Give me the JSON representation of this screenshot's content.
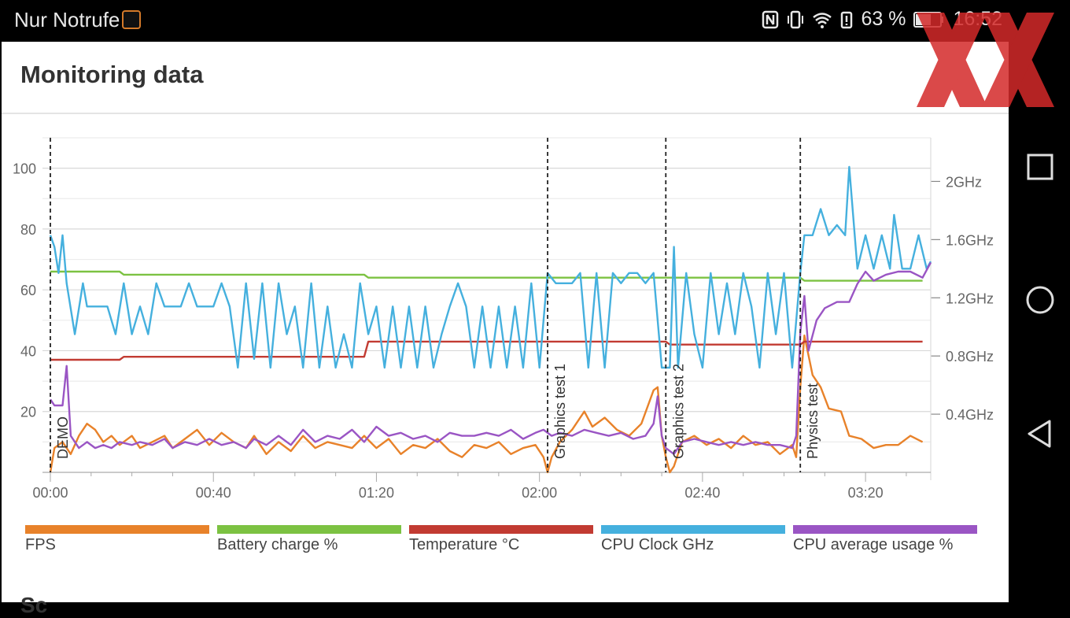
{
  "status_bar": {
    "title": "Nur Notrufe",
    "battery": "63 %",
    "time": "16:52",
    "icons": [
      "app-icon",
      "nfc-icon",
      "vibrate-icon",
      "wifi-icon",
      "battery-alert-icon",
      "battery-icon"
    ]
  },
  "page": {
    "title": "Monitoring data",
    "next_heading": "Sc"
  },
  "navigation": [
    "recent-apps-icon",
    "home-icon",
    "back-icon"
  ],
  "watermark": "XX",
  "colors": {
    "fps": "#e8822a",
    "battery": "#7cc242",
    "temperature": "#c23b32",
    "cpu_clock": "#45b0de",
    "cpu_usage": "#9a55c4"
  },
  "chart_data": {
    "type": "line",
    "x_unit": "mm:ss",
    "xlim": [
      "00:00",
      "03:36"
    ],
    "x_ticks": [
      "00:00",
      "00:40",
      "01:20",
      "02:00",
      "02:40",
      "03:20"
    ],
    "ylim_left": [
      0,
      110
    ],
    "y_ticks_left": [
      "20",
      "40",
      "60",
      "80",
      "100"
    ],
    "ylim_right_ghz": [
      0,
      2.3
    ],
    "y_ticks_right": [
      "0.4GHz",
      "0.8GHz",
      "1.2GHz",
      "1.6GHz",
      "2GHz"
    ],
    "grid": true,
    "legend_position": "bottom",
    "markers": [
      {
        "label": "DEMO",
        "t": 0
      },
      {
        "label": "Graphics test 1",
        "t": 122
      },
      {
        "label": "Graphics test 2",
        "t": 151
      },
      {
        "label": "Physics test",
        "t": 184
      }
    ],
    "series": [
      {
        "name": "FPS",
        "color": "#e8822a",
        "axis": "left",
        "points": [
          [
            0,
            0
          ],
          [
            1,
            8
          ],
          [
            3,
            10
          ],
          [
            5,
            6
          ],
          [
            7,
            12
          ],
          [
            9,
            16
          ],
          [
            11,
            14
          ],
          [
            13,
            10
          ],
          [
            15,
            12
          ],
          [
            17,
            9
          ],
          [
            20,
            12
          ],
          [
            22,
            8
          ],
          [
            25,
            10
          ],
          [
            28,
            12
          ],
          [
            30,
            8
          ],
          [
            33,
            11
          ],
          [
            36,
            14
          ],
          [
            39,
            9
          ],
          [
            42,
            13
          ],
          [
            45,
            10
          ],
          [
            48,
            8
          ],
          [
            50,
            12
          ],
          [
            53,
            6
          ],
          [
            56,
            10
          ],
          [
            59,
            7
          ],
          [
            62,
            12
          ],
          [
            65,
            8
          ],
          [
            68,
            10
          ],
          [
            71,
            9
          ],
          [
            74,
            8
          ],
          [
            77,
            12
          ],
          [
            80,
            8
          ],
          [
            83,
            11
          ],
          [
            86,
            6
          ],
          [
            89,
            9
          ],
          [
            92,
            8
          ],
          [
            95,
            11
          ],
          [
            98,
            7
          ],
          [
            101,
            5
          ],
          [
            104,
            9
          ],
          [
            107,
            8
          ],
          [
            110,
            10
          ],
          [
            113,
            6
          ],
          [
            116,
            8
          ],
          [
            119,
            9
          ],
          [
            121,
            5
          ],
          [
            122,
            0
          ],
          [
            123,
            5
          ],
          [
            125,
            10
          ],
          [
            128,
            14
          ],
          [
            131,
            20
          ],
          [
            133,
            15
          ],
          [
            136,
            18
          ],
          [
            139,
            14
          ],
          [
            142,
            12
          ],
          [
            145,
            16
          ],
          [
            148,
            27
          ],
          [
            149,
            28
          ],
          [
            150,
            12
          ],
          [
            151,
            5
          ],
          [
            152,
            0
          ],
          [
            153,
            2
          ],
          [
            155,
            10
          ],
          [
            158,
            12
          ],
          [
            161,
            9
          ],
          [
            164,
            11
          ],
          [
            167,
            8
          ],
          [
            170,
            12
          ],
          [
            173,
            9
          ],
          [
            176,
            10
          ],
          [
            179,
            6
          ],
          [
            182,
            9
          ],
          [
            183,
            5
          ],
          [
            184,
            28
          ],
          [
            185,
            45
          ],
          [
            187,
            32
          ],
          [
            189,
            28
          ],
          [
            191,
            21
          ],
          [
            194,
            20
          ],
          [
            196,
            12
          ],
          [
            199,
            11
          ],
          [
            202,
            8
          ],
          [
            205,
            9
          ],
          [
            208,
            9
          ],
          [
            211,
            12
          ],
          [
            214,
            10
          ]
        ]
      },
      {
        "name": "Battery charge %",
        "color": "#7cc242",
        "axis": "left",
        "points": [
          [
            0,
            66
          ],
          [
            17,
            66
          ],
          [
            18,
            65
          ],
          [
            77,
            65
          ],
          [
            78,
            64
          ],
          [
            184,
            64
          ],
          [
            185,
            63
          ],
          [
            214,
            63
          ]
        ]
      },
      {
        "name": "Temperature °C",
        "color": "#c23b32",
        "axis": "left",
        "points": [
          [
            0,
            37
          ],
          [
            17,
            37
          ],
          [
            18,
            38
          ],
          [
            77,
            38
          ],
          [
            78,
            43
          ],
          [
            151,
            43
          ],
          [
            152,
            42
          ],
          [
            184,
            42
          ],
          [
            185,
            43
          ],
          [
            214,
            43
          ]
        ]
      },
      {
        "name": "CPU Clock GHz",
        "color": "#45b0de",
        "axis": "right",
        "points": [
          [
            0,
            1.63
          ],
          [
            1,
            1.55
          ],
          [
            2,
            1.37
          ],
          [
            3,
            1.63
          ],
          [
            4,
            1.3
          ],
          [
            6,
            0.95
          ],
          [
            8,
            1.3
          ],
          [
            9,
            1.14
          ],
          [
            11,
            1.14
          ],
          [
            14,
            1.14
          ],
          [
            16,
            0.95
          ],
          [
            18,
            1.3
          ],
          [
            20,
            0.95
          ],
          [
            22,
            1.14
          ],
          [
            24,
            0.95
          ],
          [
            26,
            1.3
          ],
          [
            28,
            1.14
          ],
          [
            30,
            1.14
          ],
          [
            32,
            1.14
          ],
          [
            34,
            1.3
          ],
          [
            36,
            1.14
          ],
          [
            38,
            1.14
          ],
          [
            40,
            1.14
          ],
          [
            42,
            1.3
          ],
          [
            44,
            1.14
          ],
          [
            46,
            0.72
          ],
          [
            48,
            1.3
          ],
          [
            50,
            0.78
          ],
          [
            52,
            1.3
          ],
          [
            54,
            0.72
          ],
          [
            56,
            1.3
          ],
          [
            58,
            0.95
          ],
          [
            60,
            1.14
          ],
          [
            62,
            0.72
          ],
          [
            64,
            1.3
          ],
          [
            66,
            0.72
          ],
          [
            68,
            1.14
          ],
          [
            70,
            0.72
          ],
          [
            72,
            0.95
          ],
          [
            74,
            0.72
          ],
          [
            76,
            1.3
          ],
          [
            78,
            0.95
          ],
          [
            80,
            1.14
          ],
          [
            82,
            0.72
          ],
          [
            84,
            1.14
          ],
          [
            86,
            0.72
          ],
          [
            88,
            1.14
          ],
          [
            90,
            0.72
          ],
          [
            92,
            1.14
          ],
          [
            94,
            0.72
          ],
          [
            96,
            0.95
          ],
          [
            98,
            1.14
          ],
          [
            100,
            1.3
          ],
          [
            102,
            1.14
          ],
          [
            104,
            0.72
          ],
          [
            106,
            1.14
          ],
          [
            108,
            0.72
          ],
          [
            110,
            1.14
          ],
          [
            112,
            0.72
          ],
          [
            114,
            1.14
          ],
          [
            116,
            0.72
          ],
          [
            118,
            1.3
          ],
          [
            120,
            0.72
          ],
          [
            122,
            1.37
          ],
          [
            124,
            1.3
          ],
          [
            126,
            1.3
          ],
          [
            128,
            1.3
          ],
          [
            130,
            1.37
          ],
          [
            132,
            0.72
          ],
          [
            134,
            1.37
          ],
          [
            136,
            0.72
          ],
          [
            138,
            1.37
          ],
          [
            140,
            1.3
          ],
          [
            142,
            1.37
          ],
          [
            144,
            1.37
          ],
          [
            146,
            1.3
          ],
          [
            148,
            1.37
          ],
          [
            150,
            0.72
          ],
          [
            152,
            0.72
          ],
          [
            153,
            1.55
          ],
          [
            154,
            0.72
          ],
          [
            156,
            1.37
          ],
          [
            158,
            0.95
          ],
          [
            160,
            0.72
          ],
          [
            162,
            1.37
          ],
          [
            164,
            0.95
          ],
          [
            166,
            1.3
          ],
          [
            168,
            0.95
          ],
          [
            170,
            1.37
          ],
          [
            172,
            1.14
          ],
          [
            174,
            0.72
          ],
          [
            176,
            1.37
          ],
          [
            178,
            0.95
          ],
          [
            180,
            1.37
          ],
          [
            182,
            0.72
          ],
          [
            184,
            1.37
          ],
          [
            185,
            1.63
          ],
          [
            187,
            1.63
          ],
          [
            189,
            1.81
          ],
          [
            191,
            1.63
          ],
          [
            193,
            1.7
          ],
          [
            195,
            1.63
          ],
          [
            196,
            2.1
          ],
          [
            198,
            1.4
          ],
          [
            200,
            1.63
          ],
          [
            202,
            1.4
          ],
          [
            204,
            1.63
          ],
          [
            206,
            1.4
          ],
          [
            207,
            1.77
          ],
          [
            209,
            1.4
          ],
          [
            211,
            1.4
          ],
          [
            213,
            1.63
          ],
          [
            215,
            1.4
          ],
          [
            216,
            1.45
          ]
        ]
      },
      {
        "name": "CPU average usage %",
        "color": "#9a55c4",
        "axis": "left",
        "points": [
          [
            0,
            24
          ],
          [
            1,
            22
          ],
          [
            3,
            22
          ],
          [
            4,
            35
          ],
          [
            5,
            12
          ],
          [
            7,
            8
          ],
          [
            9,
            10
          ],
          [
            11,
            8
          ],
          [
            13,
            9
          ],
          [
            15,
            8
          ],
          [
            17,
            10
          ],
          [
            20,
            9
          ],
          [
            22,
            10
          ],
          [
            25,
            9
          ],
          [
            28,
            11
          ],
          [
            30,
            8
          ],
          [
            33,
            10
          ],
          [
            36,
            9
          ],
          [
            39,
            11
          ],
          [
            42,
            9
          ],
          [
            45,
            10
          ],
          [
            48,
            8
          ],
          [
            50,
            11
          ],
          [
            53,
            9
          ],
          [
            56,
            12
          ],
          [
            59,
            9
          ],
          [
            62,
            14
          ],
          [
            65,
            10
          ],
          [
            68,
            12
          ],
          [
            71,
            11
          ],
          [
            74,
            14
          ],
          [
            77,
            10
          ],
          [
            80,
            15
          ],
          [
            83,
            12
          ],
          [
            86,
            13
          ],
          [
            89,
            11
          ],
          [
            92,
            12
          ],
          [
            95,
            10
          ],
          [
            98,
            13
          ],
          [
            101,
            12
          ],
          [
            104,
            12
          ],
          [
            107,
            13
          ],
          [
            110,
            12
          ],
          [
            113,
            14
          ],
          [
            116,
            11
          ],
          [
            119,
            13
          ],
          [
            121,
            14
          ],
          [
            123,
            12
          ],
          [
            125,
            13
          ],
          [
            128,
            12
          ],
          [
            131,
            14
          ],
          [
            134,
            13
          ],
          [
            137,
            12
          ],
          [
            140,
            13
          ],
          [
            143,
            11
          ],
          [
            146,
            12
          ],
          [
            148,
            16
          ],
          [
            149,
            25
          ],
          [
            150,
            12
          ],
          [
            151,
            8
          ],
          [
            153,
            6
          ],
          [
            155,
            10
          ],
          [
            158,
            11
          ],
          [
            161,
            10
          ],
          [
            164,
            9
          ],
          [
            167,
            10
          ],
          [
            170,
            9
          ],
          [
            173,
            10
          ],
          [
            176,
            9
          ],
          [
            179,
            9
          ],
          [
            182,
            8
          ],
          [
            183,
            12
          ],
          [
            184,
            46
          ],
          [
            185,
            58
          ],
          [
            186,
            40
          ],
          [
            188,
            50
          ],
          [
            190,
            54
          ],
          [
            193,
            56
          ],
          [
            196,
            56
          ],
          [
            198,
            62
          ],
          [
            200,
            66
          ],
          [
            202,
            63
          ],
          [
            205,
            65
          ],
          [
            208,
            66
          ],
          [
            211,
            66
          ],
          [
            214,
            64
          ],
          [
            216,
            69
          ]
        ]
      }
    ]
  }
}
